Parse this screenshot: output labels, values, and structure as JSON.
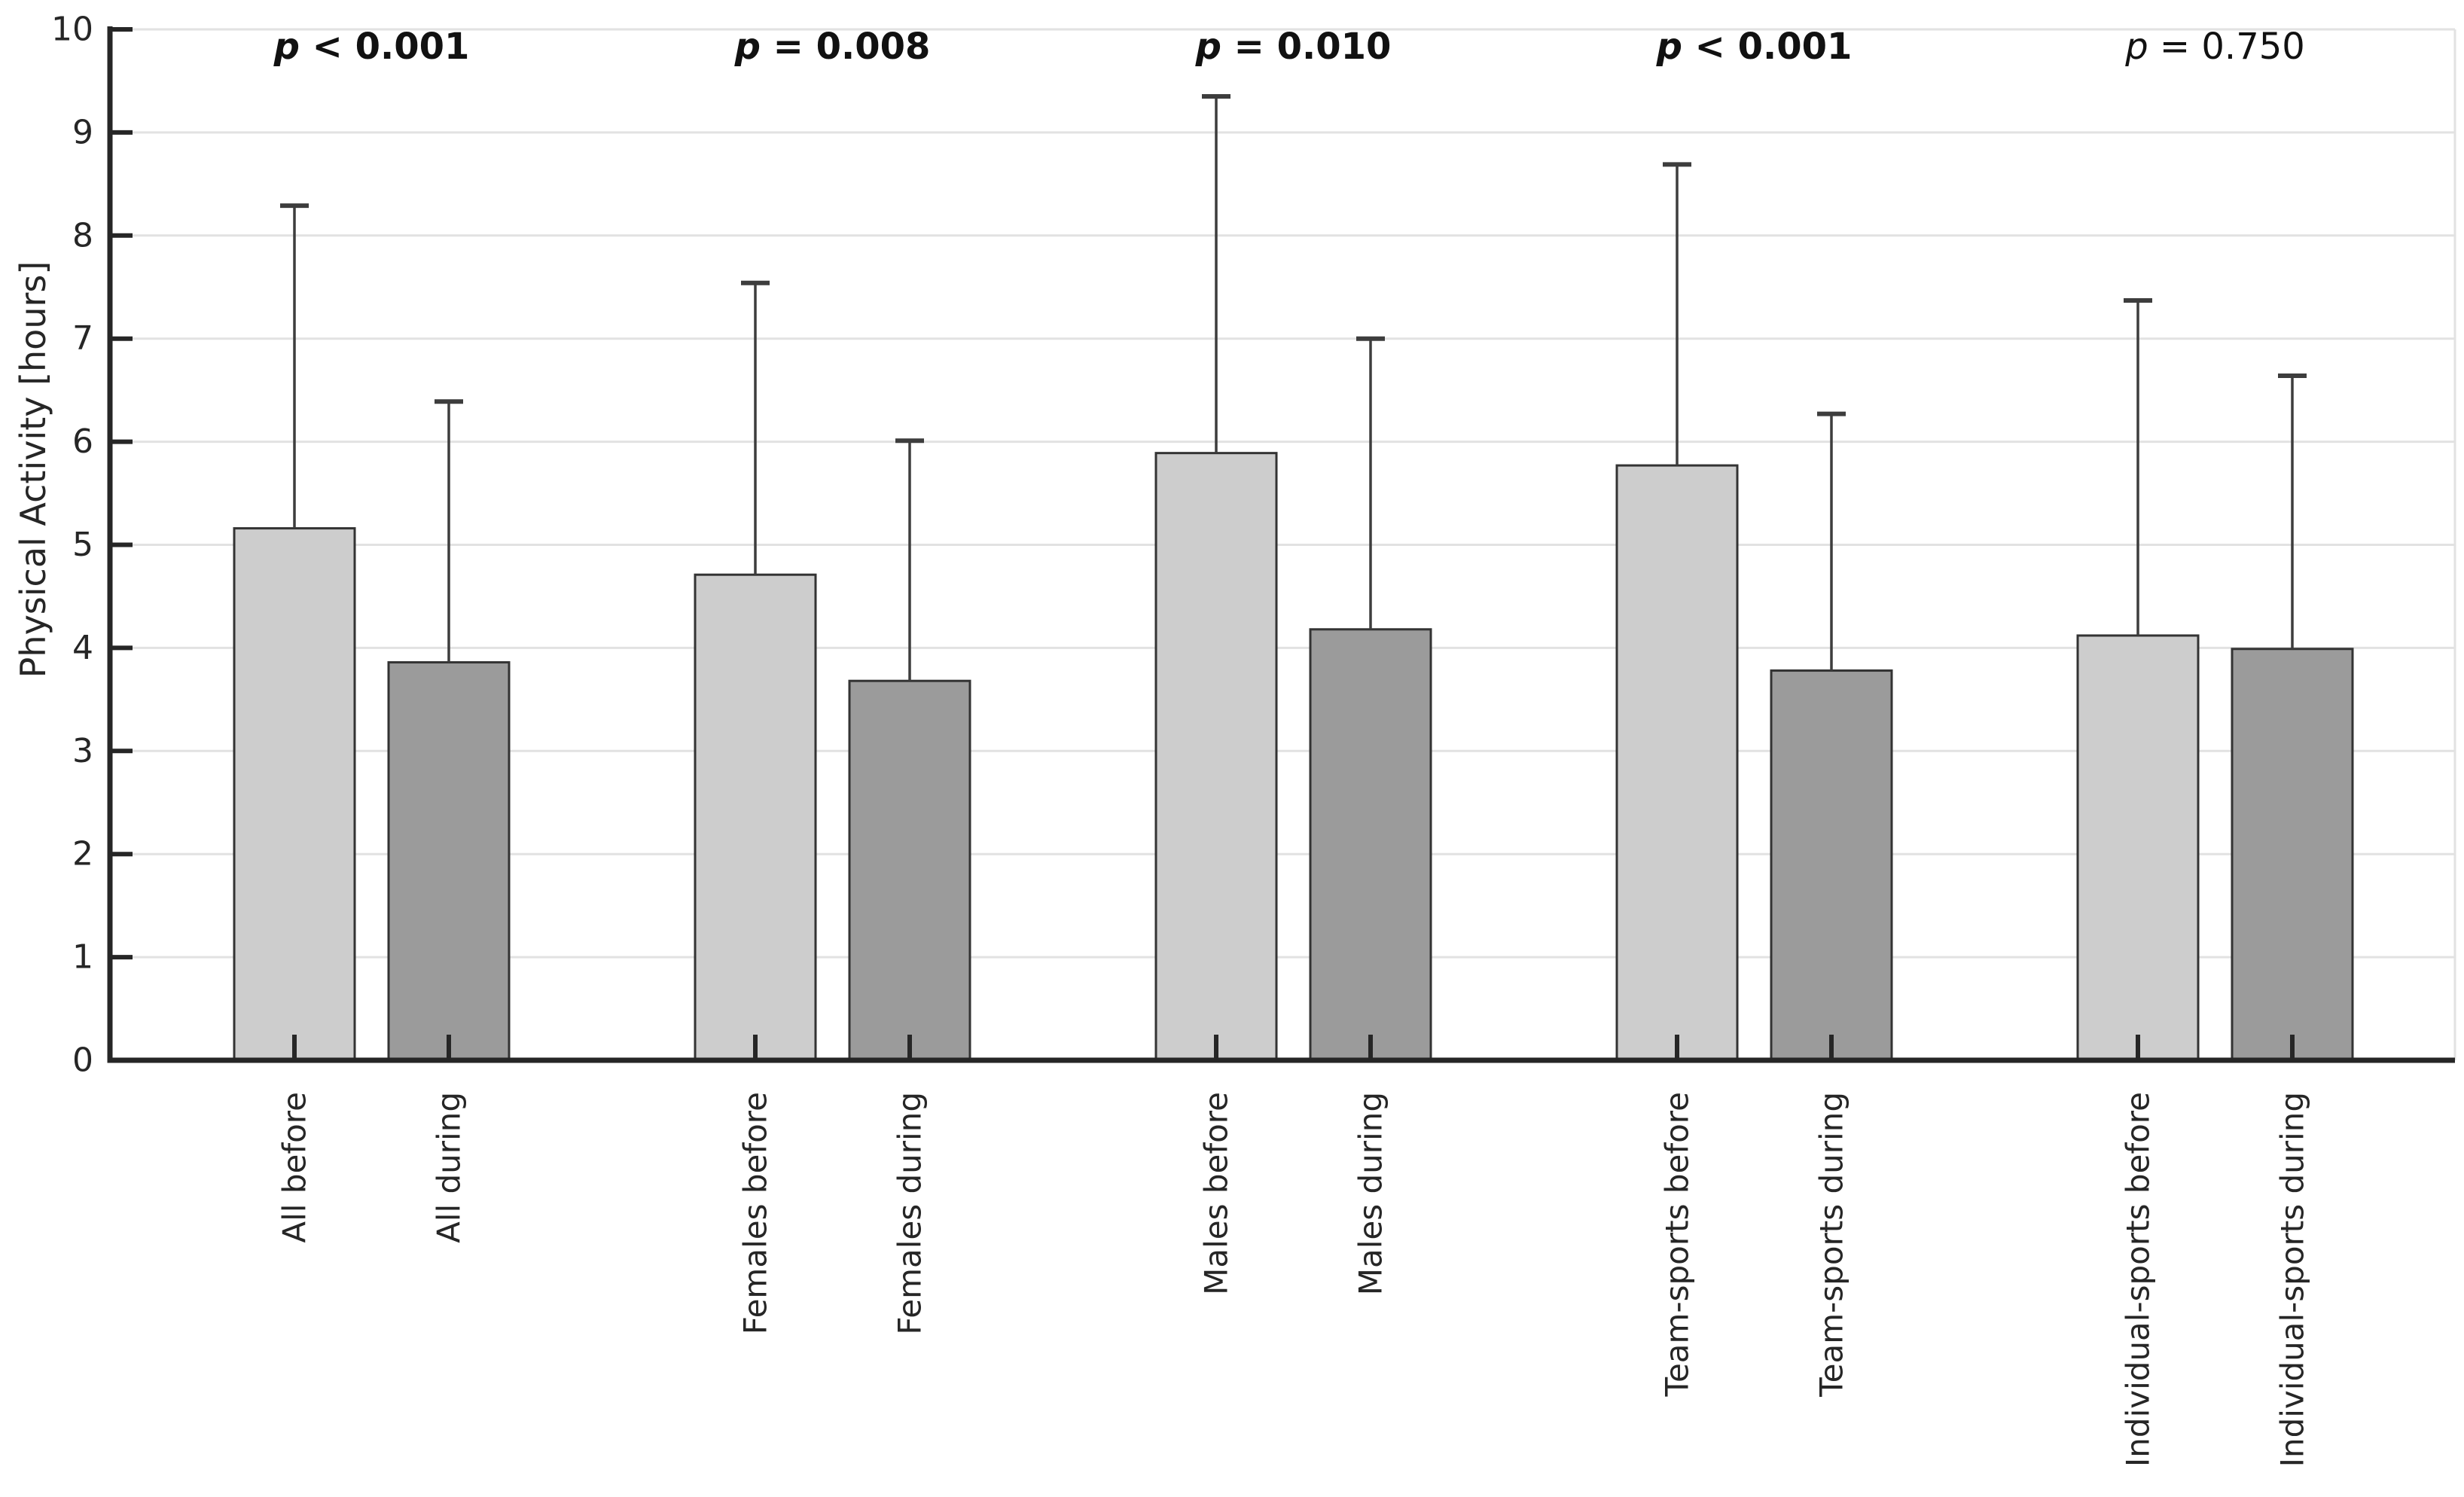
{
  "figure": {
    "ylabel": "Physical Activity [hours]"
  },
  "chart_data": {
    "type": "bar",
    "title": "",
    "xlabel": "",
    "ylabel": "Physical Activity [hours]",
    "ylim": [
      0,
      10
    ],
    "yticks": [
      0,
      1,
      2,
      3,
      4,
      5,
      6,
      7,
      8,
      9,
      10
    ],
    "grid": "horizontal-light",
    "legend": "none",
    "error_bars": "upper-only",
    "categories": [
      "All before",
      "All during",
      "Females before",
      "Females during",
      "Males before",
      "Males during",
      "Team-sports before",
      "Team-sports during",
      "Individual-sports before",
      "Individual-sports during"
    ],
    "values": [
      5.16,
      3.86,
      4.71,
      3.68,
      5.89,
      4.18,
      5.77,
      3.78,
      4.12,
      3.99
    ],
    "error_upper_caps": [
      8.29,
      6.39,
      7.54,
      6.01,
      9.35,
      7.0,
      8.69,
      6.27,
      7.37,
      6.64
    ],
    "bar_phases": [
      "before",
      "during",
      "before",
      "during",
      "before",
      "during",
      "before",
      "during",
      "before",
      "during"
    ],
    "groups": [
      "All",
      "All",
      "Females",
      "Females",
      "Males",
      "Males",
      "Team-sports",
      "Team-sports",
      "Individual-sports",
      "Individual-sports"
    ],
    "annotations": [
      {
        "symbol": "p",
        "rest": " < 0.001",
        "text": "p < 0.001",
        "bold": true
      },
      {
        "symbol": "p",
        "rest": " = 0.008",
        "text": "p = 0.008",
        "bold": true
      },
      {
        "symbol": "p",
        "rest": " = 0.010",
        "text": "p = 0.010",
        "bold": true
      },
      {
        "symbol": "p",
        "rest": " < 0.001",
        "text": "p < 0.001",
        "bold": true
      },
      {
        "symbol": "p",
        "rest": " = 0.750",
        "text": "p = 0.750",
        "bold": false
      }
    ],
    "colors": {
      "before_fill": "#cdcdcd",
      "during_fill": "#9b9b9b",
      "bar_edge": "#333333",
      "axis": "#262626",
      "grid": "#e2e2e2",
      "error_bar": "#3d3d3d",
      "text": "#262626"
    }
  }
}
